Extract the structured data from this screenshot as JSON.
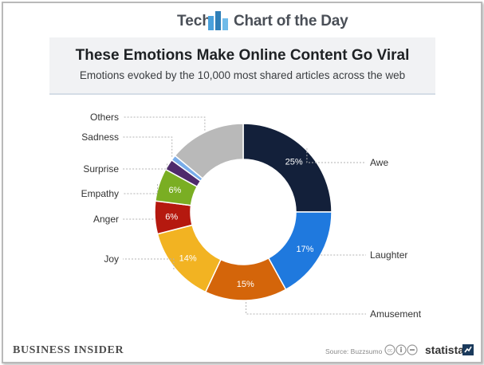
{
  "header": {
    "brand_left": "Tech",
    "brand_right": "Chart of the Day"
  },
  "footer": {
    "publisher": "BUSINESS INSIDER",
    "source": "Source: Buzzsumo",
    "statista": "statista"
  },
  "colors": {
    "awe": "#13203a",
    "laughter": "#1f79de",
    "amusement": "#d4650a",
    "joy": "#f2b322",
    "anger": "#b5190f",
    "empathy": "#7aae23",
    "surprise": "#4e2a6b",
    "sadness": "#79adea",
    "others": "#b9b9b9"
  },
  "chart_data": {
    "type": "pie",
    "donut": true,
    "title": "These Emotions Make Online Content Go Viral",
    "subtitle": "Emotions evoked by the 10,000 most shared articles across the web",
    "series": [
      {
        "label": "Awe",
        "value": 25,
        "display": "25%",
        "color_key": "awe"
      },
      {
        "label": "Laughter",
        "value": 17,
        "display": "17%",
        "color_key": "laughter"
      },
      {
        "label": "Amusement",
        "value": 15,
        "display": "15%",
        "color_key": "amusement"
      },
      {
        "label": "Joy",
        "value": 14,
        "display": "14%",
        "color_key": "joy"
      },
      {
        "label": "Anger",
        "value": 6,
        "display": "6%",
        "color_key": "anger"
      },
      {
        "label": "Empathy",
        "value": 6,
        "display": "6%",
        "color_key": "empathy"
      },
      {
        "label": "Surprise",
        "value": 2,
        "display": "",
        "color_key": "surprise"
      },
      {
        "label": "Sadness",
        "value": 1,
        "display": "",
        "color_key": "sadness"
      },
      {
        "label": "Others",
        "value": 14,
        "display": "",
        "color_key": "others"
      }
    ]
  }
}
